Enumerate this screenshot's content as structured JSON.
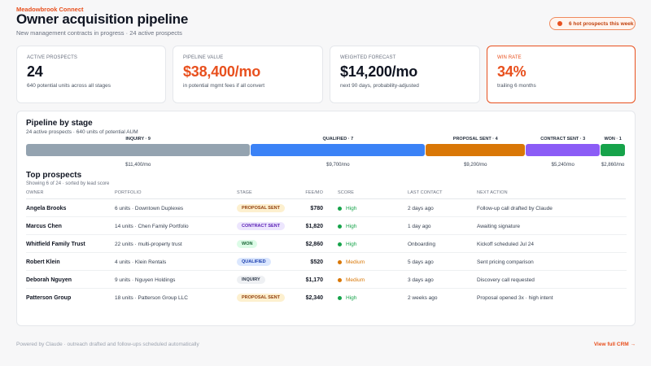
{
  "header": {
    "brand": "Meadowbrook Connect",
    "title": "Owner acquisition pipeline",
    "subtitle": "New management contracts in progress · 24 active prospects",
    "hot_pill": "6 hot prospects this week"
  },
  "kpis": [
    {
      "label": "Active prospects",
      "value": "24",
      "sub": "640 potential units across all stages"
    },
    {
      "label": "Pipeline value",
      "value": "$38,400/mo",
      "sub": "in potential mgmt fees if all convert"
    },
    {
      "label": "Weighted forecast",
      "value": "$14,200/mo",
      "sub": "next 90 days, probability-adjusted"
    },
    {
      "label": "Win rate",
      "value": "34%",
      "sub": "trailing 6 months"
    }
  ],
  "pipeline": {
    "title": "Pipeline by stage",
    "subtitle": "24 active prospects · 640 units of potential AUM",
    "stages": [
      {
        "label": "Inquiry · 9",
        "fee": "$11,400/mo",
        "count": 9,
        "color": "#94a3b0"
      },
      {
        "label": "Qualified · 7",
        "fee": "$9,700/mo",
        "count": 7,
        "color": "#3b82f6"
      },
      {
        "label": "Proposal sent · 4",
        "fee": "$9,200/mo",
        "count": 4,
        "color": "#d97706"
      },
      {
        "label": "Contract sent · 3",
        "fee": "$5,240/mo",
        "count": 3,
        "color": "#8b5cf6"
      },
      {
        "label": "Won · 1",
        "fee": "$2,860/mo",
        "count": 1,
        "color": "#16a34a"
      }
    ]
  },
  "prospects": {
    "title": "Top prospects",
    "subtitle": "Showing 6 of 24 · sorted by lead score",
    "columns": [
      "Owner",
      "Portfolio",
      "Stage",
      "Fee/mo",
      "Score",
      "Last contact",
      "Next action"
    ],
    "rows": [
      {
        "owner": "Angela Brooks",
        "portfolio": "6 units · Downtown Duplexes",
        "stage": "Proposal sent",
        "fee": "$780",
        "score": "High",
        "last_contact": "2 days ago",
        "next_action": "Follow-up call drafted by Claude"
      },
      {
        "owner": "Marcus Chen",
        "portfolio": "14 units · Chen Family Portfolio",
        "stage": "Contract sent",
        "fee": "$1,820",
        "score": "High",
        "last_contact": "1 day ago",
        "next_action": "Awaiting signature"
      },
      {
        "owner": "Whitfield Family Trust",
        "portfolio": "22 units · multi-property trust",
        "stage": "Won",
        "fee": "$2,860",
        "score": "High",
        "last_contact": "Onboarding",
        "next_action": "Kickoff scheduled Jul 24"
      },
      {
        "owner": "Robert Klein",
        "portfolio": "4 units · Klein Rentals",
        "stage": "Qualified",
        "fee": "$520",
        "score": "Medium",
        "last_contact": "5 days ago",
        "next_action": "Sent pricing comparison"
      },
      {
        "owner": "Deborah Nguyen",
        "portfolio": "9 units · Nguyen Holdings",
        "stage": "Inquiry",
        "fee": "$1,170",
        "score": "Medium",
        "last_contact": "3 days ago",
        "next_action": "Discovery call requested"
      },
      {
        "owner": "Patterson Group",
        "portfolio": "18 units · Patterson Group LLC",
        "stage": "Proposal sent",
        "fee": "$2,340",
        "score": "High",
        "last_contact": "2 weeks ago",
        "next_action": "Proposal opened 3x · high intent"
      }
    ]
  },
  "footer": {
    "note": "Powered by Claude · outreach drafted and follow-ups scheduled automatically",
    "link": "View full CRM →"
  },
  "colors": {
    "accent": "#e8501e",
    "score_high": "#16a34a",
    "score_medium": "#d97706",
    "badges": {
      "Proposal sent": {
        "bg": "#fdf0cf",
        "fg": "#92400e"
      },
      "Contract sent": {
        "bg": "#ede6fe",
        "fg": "#5b21b6"
      },
      "Won": {
        "bg": "#dcfce7",
        "fg": "#166534"
      },
      "Qualified": {
        "bg": "#dbe7fe",
        "fg": "#1e40af"
      },
      "Inquiry": {
        "bg": "#eef0f3",
        "fg": "#374151"
      }
    }
  }
}
